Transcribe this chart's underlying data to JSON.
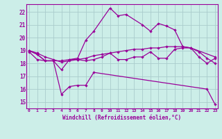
{
  "xlabel": "Windchill (Refroidissement éolien,°C)",
  "background_color": "#cceee8",
  "grid_color": "#aacccc",
  "line_color": "#990099",
  "x_ticks": [
    0,
    1,
    2,
    3,
    4,
    5,
    6,
    7,
    8,
    9,
    10,
    11,
    12,
    13,
    14,
    15,
    16,
    17,
    18,
    19,
    20,
    21,
    22,
    23
  ],
  "ylim": [
    14.5,
    22.6
  ],
  "xlim": [
    -0.3,
    23.3
  ],
  "yticks": [
    15,
    16,
    17,
    18,
    19,
    20,
    21,
    22
  ],
  "lines": [
    {
      "x": [
        0,
        1,
        2,
        3,
        4,
        5,
        6,
        7,
        8,
        10,
        11,
        12,
        14,
        15,
        16,
        17,
        18,
        19,
        20,
        23
      ],
      "y": [
        19.0,
        18.7,
        18.2,
        18.2,
        17.5,
        18.3,
        18.4,
        19.8,
        20.5,
        22.3,
        21.7,
        21.8,
        21.0,
        20.5,
        21.1,
        20.9,
        20.6,
        19.3,
        19.2,
        18.5
      ]
    },
    {
      "x": [
        0,
        1,
        2,
        3,
        4,
        5,
        6,
        7,
        8,
        22,
        23
      ],
      "y": [
        19.0,
        18.7,
        18.2,
        18.2,
        15.6,
        16.2,
        16.3,
        16.3,
        17.3,
        16.0,
        14.8
      ]
    },
    {
      "x": [
        0,
        1,
        2,
        3,
        4,
        5,
        6,
        7,
        8,
        9,
        10,
        11,
        12,
        13,
        14,
        15,
        16,
        17,
        18,
        19,
        20,
        21,
        22,
        23
      ],
      "y": [
        18.9,
        18.3,
        18.2,
        18.2,
        18.2,
        18.3,
        18.3,
        18.2,
        18.3,
        18.5,
        18.8,
        18.3,
        18.3,
        18.5,
        18.5,
        18.9,
        18.4,
        18.4,
        19.1,
        19.2,
        19.2,
        18.5,
        18.0,
        18.4
      ]
    },
    {
      "x": [
        0,
        1,
        2,
        3,
        4,
        5,
        6,
        7,
        8,
        9,
        10,
        11,
        12,
        13,
        14,
        15,
        16,
        17,
        18,
        19,
        20,
        21,
        22,
        23
      ],
      "y": [
        19.0,
        18.8,
        18.5,
        18.3,
        18.1,
        18.2,
        18.3,
        18.4,
        18.6,
        18.7,
        18.8,
        18.9,
        19.0,
        19.1,
        19.1,
        19.2,
        19.2,
        19.3,
        19.3,
        19.3,
        19.2,
        18.9,
        18.4,
        18.0
      ]
    }
  ]
}
